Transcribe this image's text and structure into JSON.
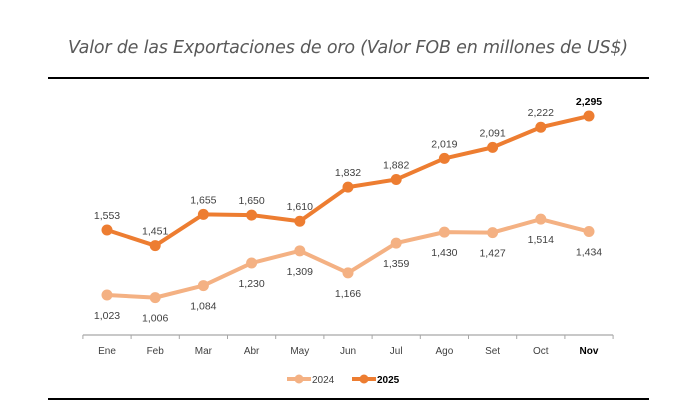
{
  "header": {
    "title": "Valor de las Exportaciones de oro (Valor FOB en millones de US$)"
  },
  "chart_data": {
    "type": "line",
    "title": "Valor de las Exportaciones de oro (Valor FOB en millones de US$)",
    "xlabel": "",
    "ylabel": "",
    "categories": [
      "Ene",
      "Feb",
      "Mar",
      "Abr",
      "May",
      "Jun",
      "Jul",
      "Ago",
      "Set",
      "Oct",
      "Nov"
    ],
    "highlight_category": "Nov",
    "series": [
      {
        "name": "2024",
        "color": "#F4B183",
        "label_position": "below",
        "values": [
          1023,
          1006,
          1084,
          1230,
          1309,
          1166,
          1359,
          1430,
          1427,
          1514,
          1434
        ],
        "labels": [
          "1,023",
          "1,006",
          "1,084",
          "1,230",
          "1,309",
          "1,166",
          "1,359",
          "1,430",
          "1,427",
          "1,514",
          "1,434"
        ]
      },
      {
        "name": "2025",
        "color": "#ED7D31",
        "label_position": "above",
        "bold_legend": true,
        "values": [
          1553,
          1451,
          1655,
          1650,
          1610,
          1832,
          1882,
          2019,
          2091,
          2222,
          2295
        ],
        "labels": [
          "1,553",
          "1,451",
          "1,655",
          "1,650",
          "1,610",
          "1,832",
          "1,882",
          "2,019",
          "2,091",
          "2,222",
          "2,295"
        ]
      }
    ],
    "grid": false,
    "legend": "bottom-center"
  }
}
